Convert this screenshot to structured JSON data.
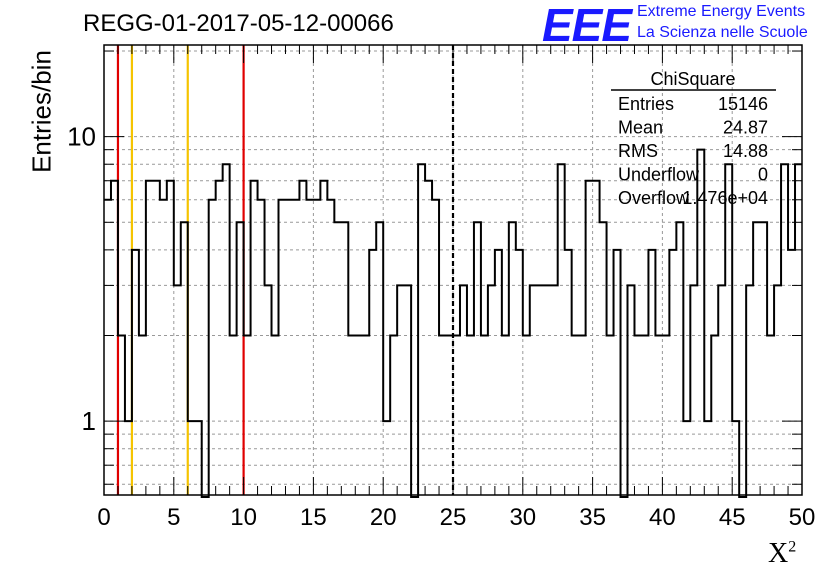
{
  "title": "REGG-01-2017-05-12-00066",
  "logo": {
    "mark": "EEE",
    "line1": "Extreme Energy Events",
    "line2": "La Scienza nelle Scuole",
    "color": "#1a1aff"
  },
  "stats": {
    "title": "ChiSquare",
    "rows": [
      {
        "label": "Entries",
        "value": "15146"
      },
      {
        "label": "Mean",
        "value": "24.87"
      },
      {
        "label": "RMS",
        "value": "14.88"
      },
      {
        "label": "Underflow",
        "value": "0"
      },
      {
        "label": "Overflow",
        "value": "1.476e+04"
      }
    ]
  },
  "chart_data": {
    "type": "histogram",
    "title": "REGG-01-2017-05-12-00066",
    "xlabel": "X",
    "xlabel_sup": "2",
    "ylabel": "Entries/bin",
    "xlim": [
      0,
      50
    ],
    "ylim": [
      0.55,
      21
    ],
    "yscale": "log",
    "grid": true,
    "x_ticks": [
      0,
      5,
      10,
      15,
      20,
      25,
      30,
      35,
      40,
      45,
      50
    ],
    "y_tick_labels": [
      1,
      10
    ],
    "bin_width": 0.5,
    "bin_counts": [
      6,
      7,
      2,
      1,
      4,
      2,
      7,
      7,
      6,
      7,
      3,
      5,
      1,
      1,
      0,
      6,
      7,
      8,
      2,
      5,
      2,
      7,
      6,
      3,
      2,
      6,
      6,
      6,
      7,
      6,
      6,
      7,
      6,
      5,
      5,
      2,
      2,
      2,
      4,
      5,
      1,
      2,
      3,
      3,
      0,
      8,
      7,
      6,
      2,
      2,
      2,
      3,
      2,
      5,
      2,
      3,
      4,
      2,
      5,
      4,
      2,
      3,
      3,
      3,
      3,
      8,
      4,
      2,
      2,
      7,
      7,
      5,
      2,
      4,
      0,
      3,
      2,
      2,
      4,
      2,
      2,
      4,
      5,
      1,
      3,
      9,
      1,
      2,
      3,
      8,
      1,
      0,
      3,
      5,
      5,
      2,
      3,
      8,
      4,
      8
    ],
    "vertical_lines": [
      {
        "x": 1,
        "color": "#e00000",
        "style": "solid"
      },
      {
        "x": 2,
        "color": "#f5c400",
        "style": "solid"
      },
      {
        "x": 6,
        "color": "#f5c400",
        "style": "solid"
      },
      {
        "x": 10,
        "color": "#e00000",
        "style": "solid"
      },
      {
        "x": 25,
        "color": "#000000",
        "style": "dashed"
      }
    ],
    "line_color": "#000000"
  }
}
